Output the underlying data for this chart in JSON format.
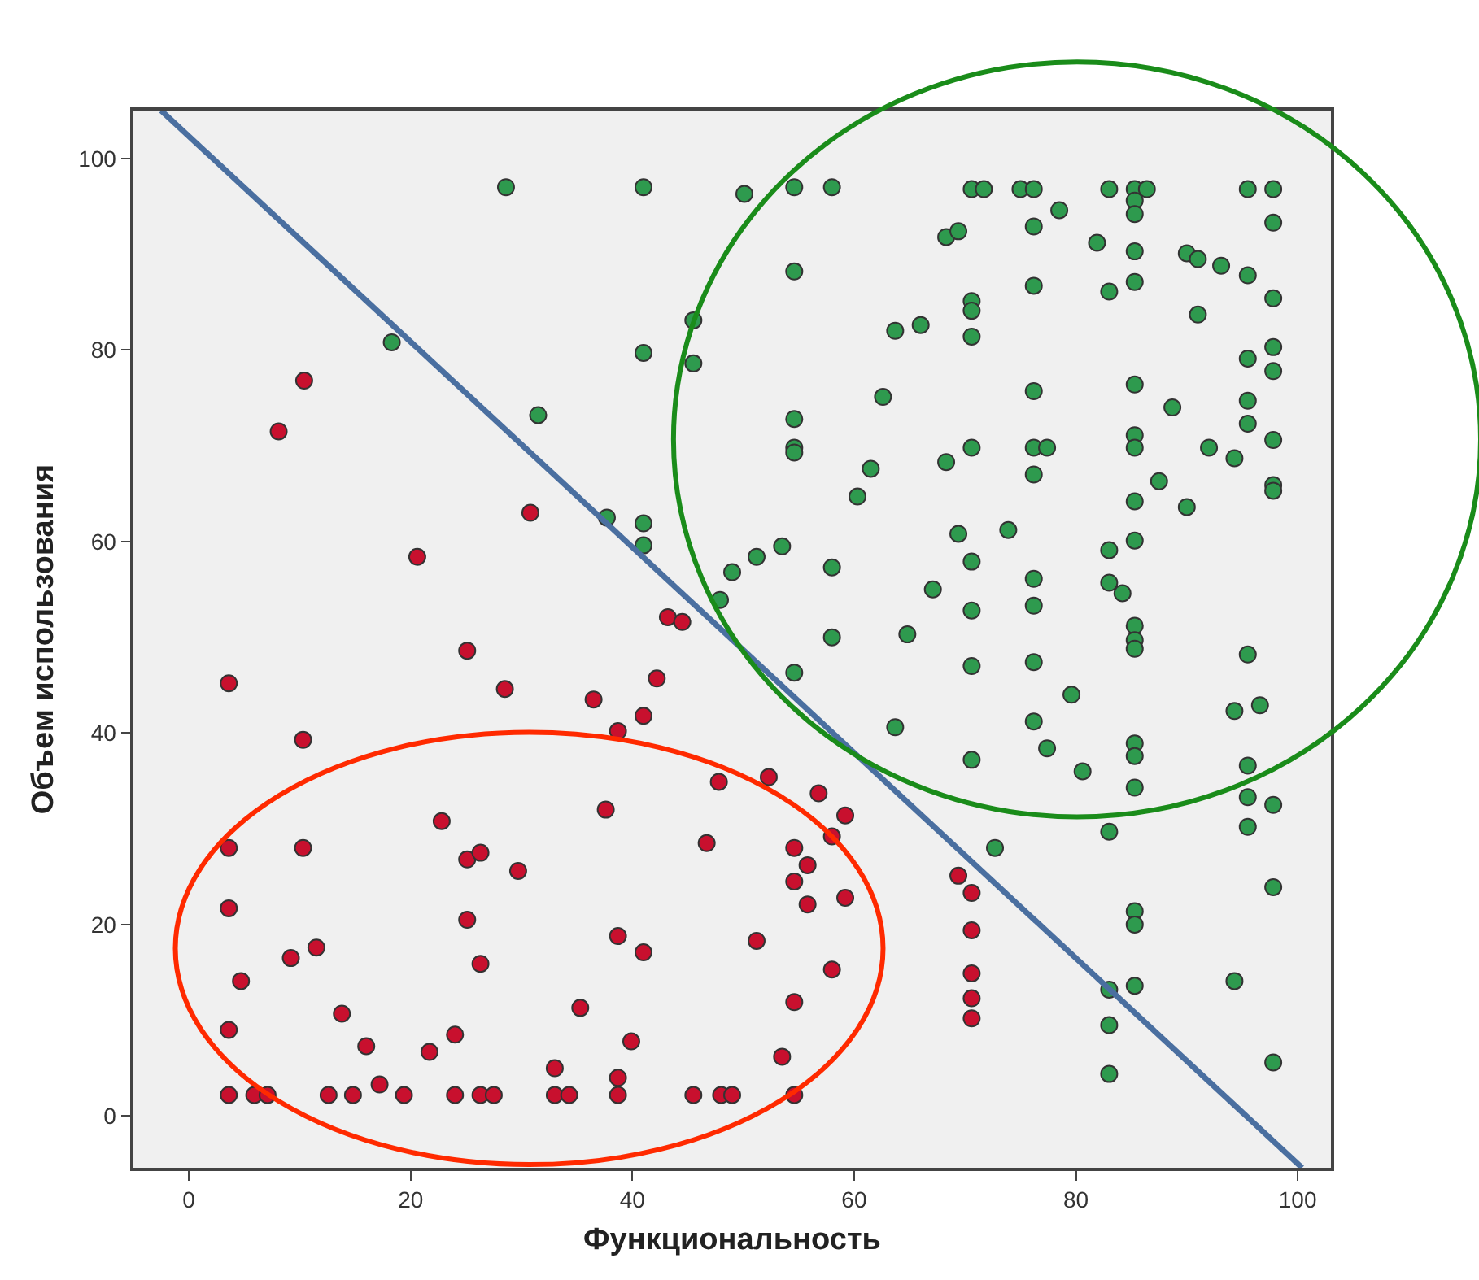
{
  "chart_data": {
    "type": "scatter",
    "xlabel": "Функциональность",
    "ylabel": "Объем использования",
    "xlim": [
      -5,
      103
    ],
    "ylim": [
      -5.4,
      105
    ],
    "xticks": [
      0,
      20,
      40,
      60,
      80,
      100
    ],
    "yticks": [
      0,
      20,
      40,
      60,
      80,
      100
    ],
    "grid": false,
    "marker": "circle",
    "series": [
      {
        "color": "#c8102e",
        "x": [
          3.6,
          10.3,
          25.1,
          28.5,
          3.6,
          10.3,
          22.8,
          25.1,
          26.3,
          29.7,
          3.6,
          25.1,
          26.3,
          9.2,
          11.5,
          4.7,
          13.8,
          3.6,
          16.0,
          21.7,
          24.0,
          17.2,
          3.6,
          5.9,
          7.1,
          12.6,
          14.8,
          19.4,
          24.0,
          26.3,
          27.5,
          10.4,
          8.1,
          20.6,
          30.8,
          42.2,
          36.5,
          41.0,
          38.7,
          37.6,
          47.8,
          52.3,
          56.8,
          59.2,
          58.0,
          46.7,
          54.6,
          55.8,
          54.6,
          55.8,
          59.2,
          38.7,
          41.0,
          51.2,
          58.0,
          54.6,
          35.3,
          39.9,
          33.0,
          38.7,
          53.5,
          33.0,
          34.3,
          38.7,
          45.5,
          48.0,
          49.0,
          54.6,
          43.2,
          44.5,
          69.4,
          70.6,
          70.6,
          70.6,
          70.6,
          70.6
        ],
        "values": [
          45.2,
          39.3,
          48.6,
          44.6,
          28.0,
          28.0,
          30.8,
          26.8,
          27.5,
          25.6,
          21.7,
          20.5,
          15.9,
          16.5,
          17.6,
          14.1,
          10.7,
          9.0,
          7.3,
          6.7,
          8.5,
          3.3,
          2.2,
          2.2,
          2.2,
          2.2,
          2.2,
          2.2,
          2.2,
          2.2,
          2.2,
          76.8,
          71.5,
          58.4,
          63.0,
          45.7,
          43.5,
          41.8,
          40.2,
          32.0,
          34.9,
          35.4,
          33.7,
          31.4,
          29.2,
          28.5,
          28.0,
          26.2,
          24.5,
          22.1,
          22.8,
          18.8,
          17.1,
          18.3,
          15.3,
          11.9,
          11.3,
          7.8,
          5.0,
          4.0,
          6.2,
          2.2,
          2.2,
          2.2,
          2.2,
          2.2,
          2.2,
          2.2,
          52.1,
          51.6,
          25.1,
          23.3,
          19.4,
          14.9,
          12.3,
          10.2
        ]
      },
      {
        "color": "#2e9a4e",
        "x": [
          28.6,
          18.3,
          31.5,
          41.0,
          50.1,
          54.6,
          58.0,
          54.6,
          45.5,
          41.0,
          45.5,
          63.7,
          66.0,
          62.6,
          54.6,
          54.6,
          54.6,
          61.5,
          60.3,
          37.7,
          41.0,
          41.0,
          53.5,
          51.2,
          49.0,
          47.9,
          58.0,
          67.1,
          58.0,
          64.8,
          54.6,
          63.7,
          70.6,
          71.7,
          75.0,
          76.2,
          83.0,
          85.3,
          86.4,
          85.3,
          85.3,
          95.5,
          97.8,
          97.8,
          78.5,
          76.2,
          68.3,
          69.4,
          81.9,
          85.3,
          90.0,
          91.0,
          93.1,
          95.5,
          76.2,
          83.0,
          85.3,
          97.8,
          91.0,
          70.6,
          70.6,
          70.6,
          97.8,
          95.5,
          97.8,
          76.2,
          85.3,
          88.7,
          95.5,
          95.5,
          70.6,
          68.3,
          76.2,
          77.4,
          76.2,
          85.3,
          85.3,
          92.0,
          94.3,
          87.5,
          97.8,
          97.8,
          97.8,
          85.3,
          90.0,
          69.4,
          73.9,
          70.6,
          76.2,
          76.2,
          70.6,
          83.0,
          85.3,
          83.0,
          84.2,
          85.3,
          85.3,
          70.6,
          76.2,
          79.6,
          76.2,
          77.4,
          70.6,
          80.6,
          85.3,
          85.3,
          85.3,
          85.3,
          95.5,
          94.3,
          96.6,
          95.5,
          95.5,
          97.8,
          95.5,
          83.0,
          72.7,
          97.8,
          85.3,
          85.3,
          83.0,
          85.3,
          83.0,
          83.0,
          94.3,
          97.8
        ],
        "values": [
          97.0,
          80.8,
          73.2,
          97.0,
          96.3,
          97.0,
          97.0,
          88.2,
          83.1,
          79.7,
          78.6,
          82.0,
          82.6,
          75.1,
          72.8,
          69.8,
          69.3,
          67.6,
          64.7,
          62.5,
          61.9,
          59.6,
          59.5,
          58.4,
          56.8,
          53.9,
          57.3,
          55.0,
          50.0,
          50.3,
          46.3,
          40.6,
          96.8,
          96.8,
          96.8,
          96.8,
          96.8,
          96.8,
          96.8,
          95.6,
          94.2,
          96.8,
          96.8,
          93.3,
          94.6,
          92.9,
          91.8,
          92.4,
          91.2,
          90.3,
          90.1,
          89.5,
          88.8,
          87.8,
          86.7,
          86.1,
          87.1,
          85.4,
          83.7,
          85.1,
          84.1,
          81.4,
          80.3,
          79.1,
          77.8,
          75.7,
          76.4,
          74.0,
          74.7,
          72.3,
          69.8,
          68.3,
          69.8,
          69.8,
          67.0,
          71.1,
          69.8,
          69.8,
          68.7,
          66.3,
          70.6,
          65.9,
          65.3,
          64.2,
          63.6,
          60.8,
          61.2,
          57.9,
          56.1,
          53.3,
          52.8,
          59.1,
          60.1,
          55.7,
          54.6,
          51.2,
          49.7,
          47.0,
          47.4,
          44.0,
          41.2,
          38.4,
          37.2,
          36.0,
          48.8,
          38.9,
          37.6,
          34.3,
          48.2,
          42.3,
          42.9,
          36.6,
          33.3,
          32.5,
          30.2,
          29.7,
          28.0,
          23.9,
          21.4,
          20.0,
          13.2,
          13.6,
          9.5,
          4.4,
          14.1,
          5.6
        ]
      },
      {
        "type": "line",
        "marker": "none",
        "color": "#4a6fa0",
        "x": [
          -2.5,
          100.4
        ],
        "values": [
          105,
          -5.4
        ]
      }
    ]
  }
}
